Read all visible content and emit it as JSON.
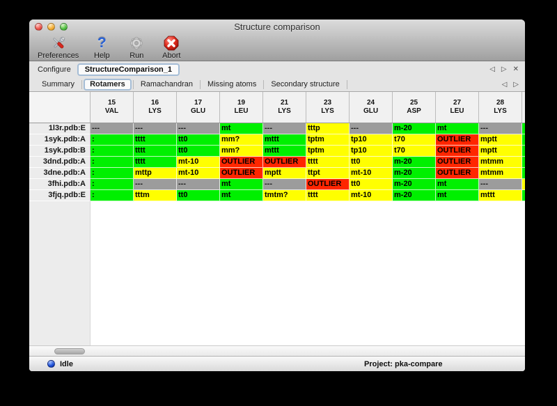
{
  "window": {
    "title": "Structure comparison"
  },
  "toolbar": {
    "items": [
      {
        "label": "Preferences",
        "icon": "tools-icon"
      },
      {
        "label": "Help",
        "icon": "question-icon",
        "glyph": "?"
      },
      {
        "label": "Run",
        "icon": "gear-icon"
      },
      {
        "label": "Abort",
        "icon": "stop-x-icon"
      }
    ]
  },
  "configure": {
    "label": "Configure",
    "value": "StructureComparison_1"
  },
  "nav": {
    "back": "◁",
    "forward": "▷",
    "close": "✕"
  },
  "tabs": {
    "items": [
      "Summary",
      "Rotamers",
      "Ramachandran",
      "Missing atoms",
      "Secondary structure"
    ],
    "selected": "Rotamers"
  },
  "table": {
    "columns": [
      {
        "num": "15",
        "res": "VAL"
      },
      {
        "num": "16",
        "res": "LYS"
      },
      {
        "num": "17",
        "res": "GLU"
      },
      {
        "num": "19",
        "res": "LEU"
      },
      {
        "num": "21",
        "res": "LYS"
      },
      {
        "num": "23",
        "res": "LYS"
      },
      {
        "num": "24",
        "res": "GLU"
      },
      {
        "num": "25",
        "res": "ASP"
      },
      {
        "num": "27",
        "res": "LEU"
      },
      {
        "num": "28",
        "res": "LYS"
      }
    ],
    "rows": [
      {
        "label": "1l3r.pdb:E",
        "cells": [
          [
            "---",
            "gray"
          ],
          [
            "---",
            "gray"
          ],
          [
            "---",
            "gray"
          ],
          [
            "mt",
            "green"
          ],
          [
            "---",
            "gray"
          ],
          [
            "tttp",
            "yellow"
          ],
          [
            "---",
            "gray"
          ],
          [
            "m-20",
            "green"
          ],
          [
            "mt",
            "green"
          ],
          [
            "---",
            "gray"
          ]
        ]
      },
      {
        "label": "1syk.pdb:A",
        "cells": [
          [
            ":",
            "green"
          ],
          [
            "tttt",
            "green"
          ],
          [
            "tt0",
            "green"
          ],
          [
            "mm?",
            "yellow"
          ],
          [
            "mttt",
            "green"
          ],
          [
            "tptm",
            "yellow"
          ],
          [
            "tp10",
            "yellow"
          ],
          [
            "t70",
            "yellow"
          ],
          [
            "OUTLIER",
            "red"
          ],
          [
            "mptt",
            "yellow"
          ]
        ]
      },
      {
        "label": "1syk.pdb:B",
        "cells": [
          [
            ":",
            "green"
          ],
          [
            "tttt",
            "green"
          ],
          [
            "tt0",
            "green"
          ],
          [
            "mm?",
            "yellow"
          ],
          [
            "mttt",
            "green"
          ],
          [
            "tptm",
            "yellow"
          ],
          [
            "tp10",
            "yellow"
          ],
          [
            "t70",
            "yellow"
          ],
          [
            "OUTLIER",
            "red"
          ],
          [
            "mptt",
            "yellow"
          ]
        ]
      },
      {
        "label": "3dnd.pdb:A",
        "cells": [
          [
            ":",
            "green"
          ],
          [
            "tttt",
            "green"
          ],
          [
            "mt-10",
            "yellow"
          ],
          [
            "OUTLIER",
            "red"
          ],
          [
            "OUTLIER",
            "red"
          ],
          [
            "tttt",
            "yellow"
          ],
          [
            "tt0",
            "yellow"
          ],
          [
            "m-20",
            "green"
          ],
          [
            "OUTLIER",
            "red"
          ],
          [
            "mtmm",
            "yellow"
          ]
        ]
      },
      {
        "label": "3dne.pdb:A",
        "cells": [
          [
            ":",
            "green"
          ],
          [
            "mttp",
            "yellow"
          ],
          [
            "mt-10",
            "yellow"
          ],
          [
            "OUTLIER",
            "red"
          ],
          [
            "mptt",
            "yellow"
          ],
          [
            "ttpt",
            "yellow"
          ],
          [
            "mt-10",
            "yellow"
          ],
          [
            "m-20",
            "green"
          ],
          [
            "OUTLIER",
            "red"
          ],
          [
            "mtmm",
            "yellow"
          ]
        ]
      },
      {
        "label": "3fhi.pdb:A",
        "cells": [
          [
            ":",
            "green"
          ],
          [
            "---",
            "gray"
          ],
          [
            "---",
            "gray"
          ],
          [
            "mt",
            "green"
          ],
          [
            "---",
            "gray"
          ],
          [
            "OUTLIER",
            "red"
          ],
          [
            "tt0",
            "yellow"
          ],
          [
            "m-20",
            "green"
          ],
          [
            "mt",
            "green"
          ],
          [
            "---",
            "gray"
          ]
        ]
      },
      {
        "label": "3fjq.pdb:E",
        "cells": [
          [
            ":",
            "green"
          ],
          [
            "tttm",
            "yellow"
          ],
          [
            "tt0",
            "green"
          ],
          [
            "mt",
            "green"
          ],
          [
            "tmtm?",
            "yellow"
          ],
          [
            "tttt",
            "yellow"
          ],
          [
            "mt-10",
            "yellow"
          ],
          [
            "m-20",
            "green"
          ],
          [
            "mt",
            "green"
          ],
          [
            "mttt",
            "yellow"
          ]
        ]
      }
    ],
    "overflow_colors": [
      "green",
      "green",
      "green",
      "green",
      "green",
      "yellow",
      "green"
    ]
  },
  "statusbar": {
    "state": "Idle",
    "project": "Project: pka-compare"
  },
  "colors": {
    "green": "#00f000",
    "yellow": "#ffff00",
    "red": "#ff2600",
    "gray": "#9c9c9c",
    "blue": "#1c4fd8"
  }
}
